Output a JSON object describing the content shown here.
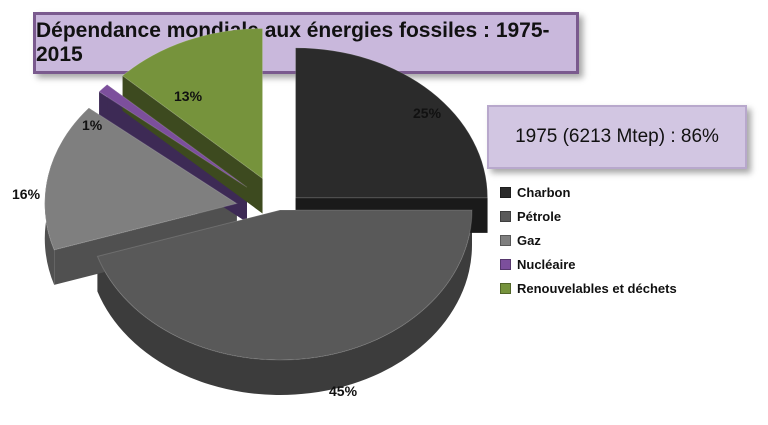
{
  "chart_data": {
    "type": "pie",
    "title": "Dépendance mondiale aux énergies fossiles : 1975-2015",
    "callout": "1975 (6213 Mtep) : 86%",
    "slices": [
      {
        "label": "Charbon",
        "value": 25,
        "display": "25%",
        "color": "#2b2b2b",
        "side": "#1a1a1a"
      },
      {
        "label": "Pétrole",
        "value": 45,
        "display": "45%",
        "color": "#595959",
        "side": "#3c3c3c"
      },
      {
        "label": "Gaz",
        "value": 16,
        "display": "16%",
        "color": "#7f7f7f",
        "side": "#505050"
      },
      {
        "label": "Nucléaire",
        "value": 1,
        "display": "1%",
        "color": "#7c4f9c",
        "side": "#3d2a55"
      },
      {
        "label": "Renouvelables et déchets",
        "value": 13,
        "display": "13%",
        "color": "#76933c",
        "side": "#3d4a1f"
      }
    ],
    "legend_position": "right"
  }
}
